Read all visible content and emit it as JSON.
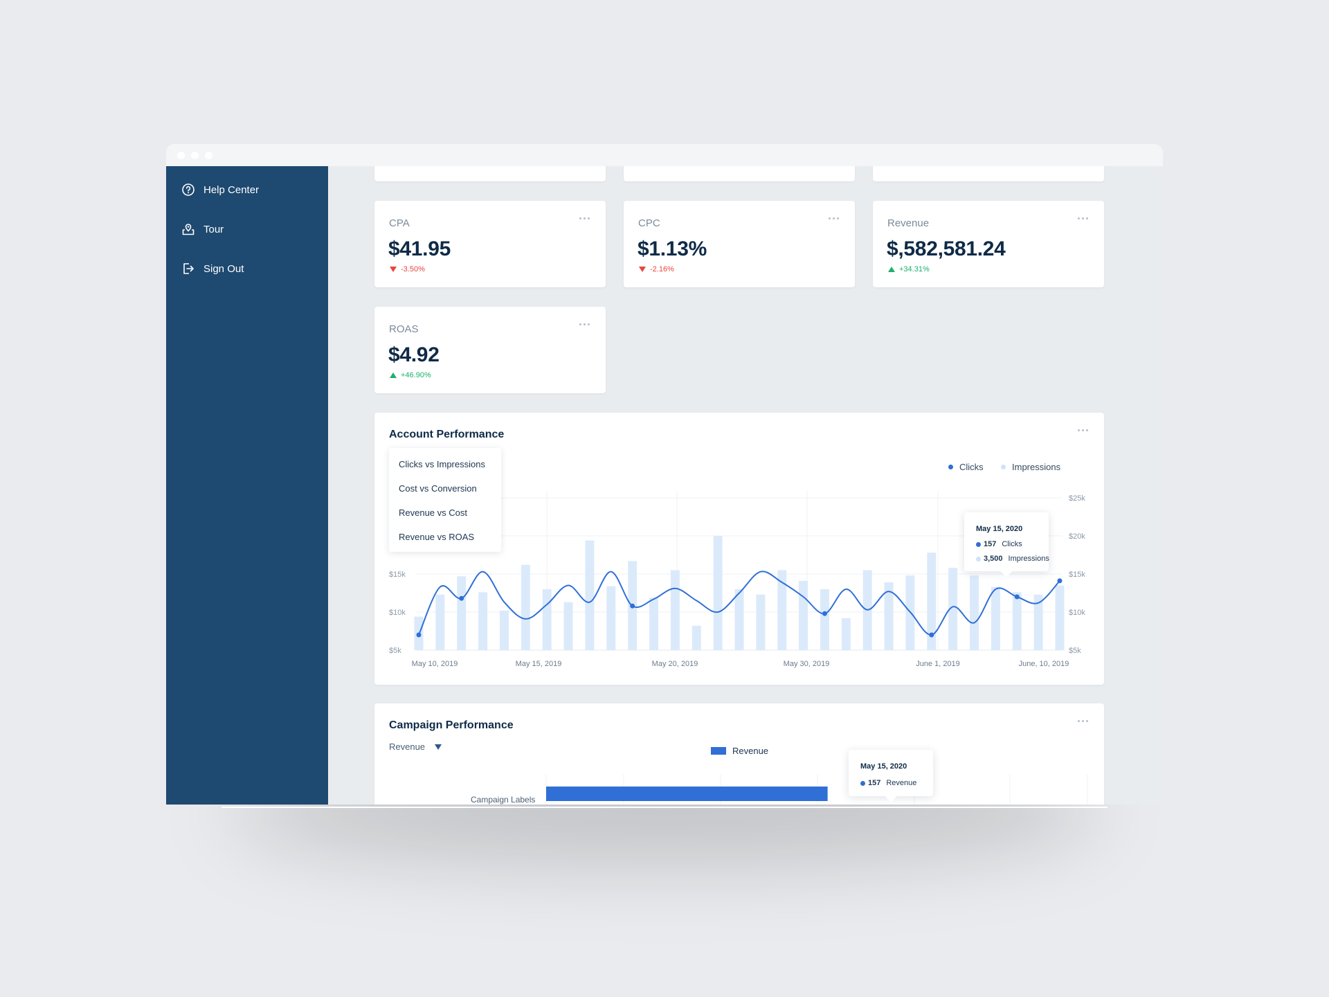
{
  "sidebar": {
    "items": [
      {
        "label": "Help Center",
        "icon": "help-circle-icon"
      },
      {
        "label": "Tour",
        "icon": "tour-pin-icon"
      },
      {
        "label": "Sign Out",
        "icon": "sign-out-icon"
      }
    ]
  },
  "kpis": [
    {
      "label": "CPA",
      "value": "$41.95",
      "delta": "-3.50%",
      "direction": "down"
    },
    {
      "label": "CPC",
      "value": "$1.13%",
      "delta": "-2.16%",
      "direction": "down"
    },
    {
      "label": "Revenue",
      "value": "$,582,581.24",
      "delta": "+34.31%",
      "direction": "up"
    },
    {
      "label": "ROAS",
      "value": "$4.92",
      "delta": "+46.90%",
      "direction": "up"
    }
  ],
  "account_performance": {
    "title": "Account Performance",
    "dropdown_options": [
      "Clicks vs Impressions",
      "Cost vs Conversion",
      "Revenue vs Cost",
      "Revenue vs ROAS"
    ],
    "legend": [
      {
        "label": "Clicks",
        "color": "#2f6fd6"
      },
      {
        "label": "Impressions",
        "color": "#cfe3fa"
      }
    ],
    "tooltip": {
      "date": "May 15, 2020",
      "rows": [
        {
          "value": "157",
          "label": "Clicks"
        },
        {
          "value": "3,500",
          "label": "Impressions"
        }
      ]
    }
  },
  "campaign_performance": {
    "title": "Campaign Performance",
    "selected_metric": "Revenue",
    "legend_label": "Revenue",
    "y_label": "Campaign Labels",
    "tooltip": {
      "date": "May 15, 2020",
      "rows": [
        {
          "value": "157",
          "label": "Revenue"
        }
      ]
    }
  },
  "chart_data": [
    {
      "type": "bar",
      "title": "Account Performance",
      "y_ticks_left": [
        "$5k",
        "$10k",
        "$15k"
      ],
      "y_ticks_right": [
        "$5k",
        "$10k",
        "$15k",
        "$20k",
        "$25k"
      ],
      "ylim": [
        5000,
        25000
      ],
      "x_ticks": [
        "May 10, 2019",
        "May 15, 2019",
        "May 20, 2019",
        "May 30, 2019",
        "June 1, 2019",
        "June, 10, 2019"
      ],
      "series": [
        {
          "name": "Impressions",
          "values": [
            9400,
            12300,
            14700,
            12600,
            10200,
            16200,
            13000,
            11300,
            19400,
            13400,
            16700,
            11900,
            15500,
            8200,
            20000,
            13000,
            12300,
            15500,
            14100,
            13000,
            9200,
            15500,
            13900,
            14800,
            17800,
            15800,
            14800,
            13300,
            12600,
            12300,
            13500
          ]
        },
        {
          "name": "Clicks",
          "values": [
            7000,
            13300,
            11800,
            15300,
            11300,
            9100,
            11000,
            13500,
            11300,
            15300,
            10800,
            11700,
            13100,
            11500,
            10000,
            12500,
            15300,
            13900,
            12000,
            9800,
            13000,
            10300,
            12700,
            10000,
            7000,
            10700,
            8600,
            13000,
            12000,
            11200,
            14100
          ]
        }
      ]
    },
    {
      "type": "bar",
      "title": "Campaign Performance",
      "categories": [
        "Campaign Labels"
      ],
      "series": [
        {
          "name": "Revenue",
          "values": [
            0.52
          ]
        }
      ]
    }
  ]
}
